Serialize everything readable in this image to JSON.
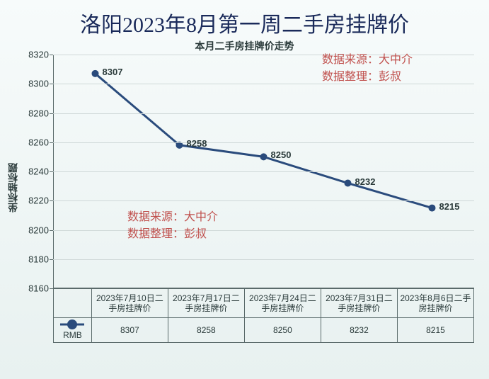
{
  "page_title": "洛阳2023年8月第一周二手房挂牌价",
  "chart": {
    "type": "line",
    "title": "本月二手房挂牌价走势",
    "y_axis_title": "坐标轴标题",
    "ylim": [
      8160,
      8320
    ],
    "ytick_step": 20,
    "yticks": [
      8160,
      8180,
      8200,
      8220,
      8240,
      8260,
      8280,
      8300,
      8320
    ],
    "categories": [
      "2023年7月10日二手房挂牌价",
      "2023年7月17日二手房挂牌价",
      "2023年7月24日二手房挂牌价",
      "2023年7月31日二手房挂牌价",
      "2023年8月6日二手房挂牌价"
    ],
    "series_name": "RMB",
    "values": [
      8307,
      8258,
      8250,
      8232,
      8215
    ],
    "line_color": "#2a4b7c",
    "line_width": 3,
    "marker_size": 8,
    "marker_fill": "#2a4b7c",
    "grid_color": "#cfd8d8",
    "background": "linear-gradient(#f7fbfb,#e8f1f0)",
    "label_fontsize": 13,
    "title_fontsize": 14,
    "annotations": [
      {
        "text_lines": [
          "数据来源：大中介",
          "数据整理：彭叔"
        ],
        "pos": "top-right",
        "color": "#c0504d"
      },
      {
        "text_lines": [
          "数据来源：大中介",
          "数据整理：彭叔"
        ],
        "pos": "mid-left",
        "color": "#c0504d"
      }
    ]
  }
}
